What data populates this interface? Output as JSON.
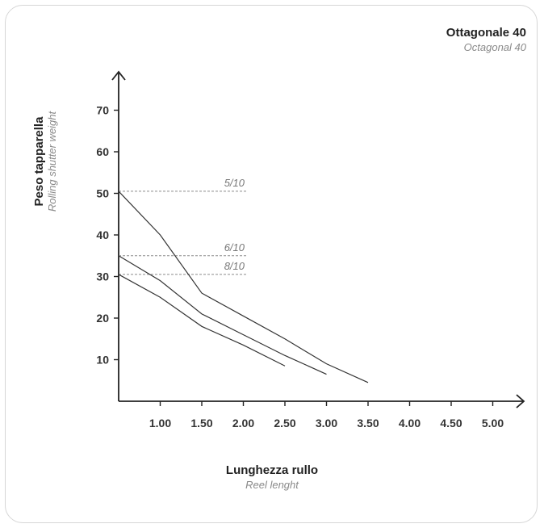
{
  "chart_data": {
    "type": "line",
    "title": "Ottagonale 40",
    "subtitle": "Octagonal 40",
    "xlabel": "Lunghezza rullo",
    "xlabel_sub": "Reel lenght",
    "ylabel": "Peso tapparella",
    "ylabel_sub": "Rolling shutter weight",
    "xlim": [
      0.5,
      5.25
    ],
    "ylim": [
      0,
      77
    ],
    "x_ticks": [
      "1.00",
      "1.50",
      "2.00",
      "2.50",
      "3.00",
      "3.50",
      "4.00",
      "4.50",
      "5.00"
    ],
    "y_ticks": [
      "10",
      "20",
      "30",
      "40",
      "50",
      "60",
      "70"
    ],
    "grid": false,
    "series": [
      {
        "name": "5/10",
        "ref_y": 50.5,
        "x": [
          0.5,
          1.0,
          1.5,
          2.0,
          2.5,
          3.0,
          3.5
        ],
        "y": [
          50.5,
          40,
          26,
          20.5,
          15,
          9,
          4.5
        ]
      },
      {
        "name": "6/10",
        "ref_y": 35,
        "x": [
          0.5,
          1.0,
          1.5,
          2.0,
          2.5,
          3.0
        ],
        "y": [
          35,
          29,
          21,
          16,
          11,
          6.5
        ]
      },
      {
        "name": "8/10",
        "ref_y": 30.5,
        "x": [
          0.5,
          1.0,
          1.5,
          2.0,
          2.5
        ],
        "y": [
          30.5,
          25,
          18,
          13.5,
          8.5
        ]
      }
    ]
  }
}
